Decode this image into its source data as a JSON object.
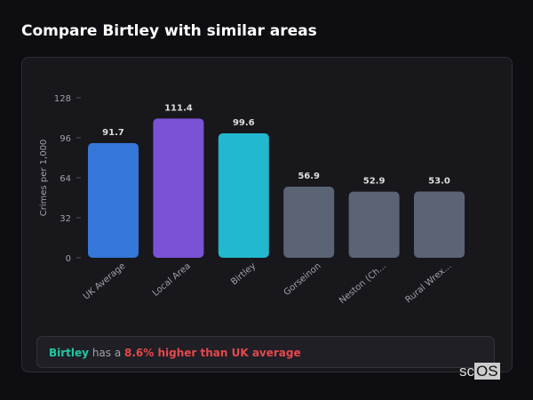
{
  "title": "Compare Birtley with similar areas",
  "chart_data": {
    "type": "bar",
    "ylabel": "Crimes per 1,000",
    "xlabel": "",
    "ylim": [
      0,
      128
    ],
    "yticks": [
      0,
      32,
      64,
      96,
      128
    ],
    "grid": false,
    "categories": [
      "UK Average",
      "Local Area",
      "Birtley",
      "Gorseinon",
      "Neston (Ch...",
      "Rural Wrex..."
    ],
    "values": [
      91.7,
      111.4,
      99.6,
      56.9,
      52.9,
      53.0
    ],
    "value_labels": [
      "91.7",
      "111.4",
      "99.6",
      "56.9",
      "52.9",
      "53.0"
    ],
    "colors": [
      "#3576d9",
      "#7b52d6",
      "#22b8cf",
      "#5a6475",
      "#5a6475",
      "#5a6475"
    ]
  },
  "summary": {
    "area": "Birtley",
    "middle": " has a ",
    "comparison": "8.6% higher than UK average"
  },
  "logo": {
    "text_a": "sc",
    "text_b": "OS"
  }
}
